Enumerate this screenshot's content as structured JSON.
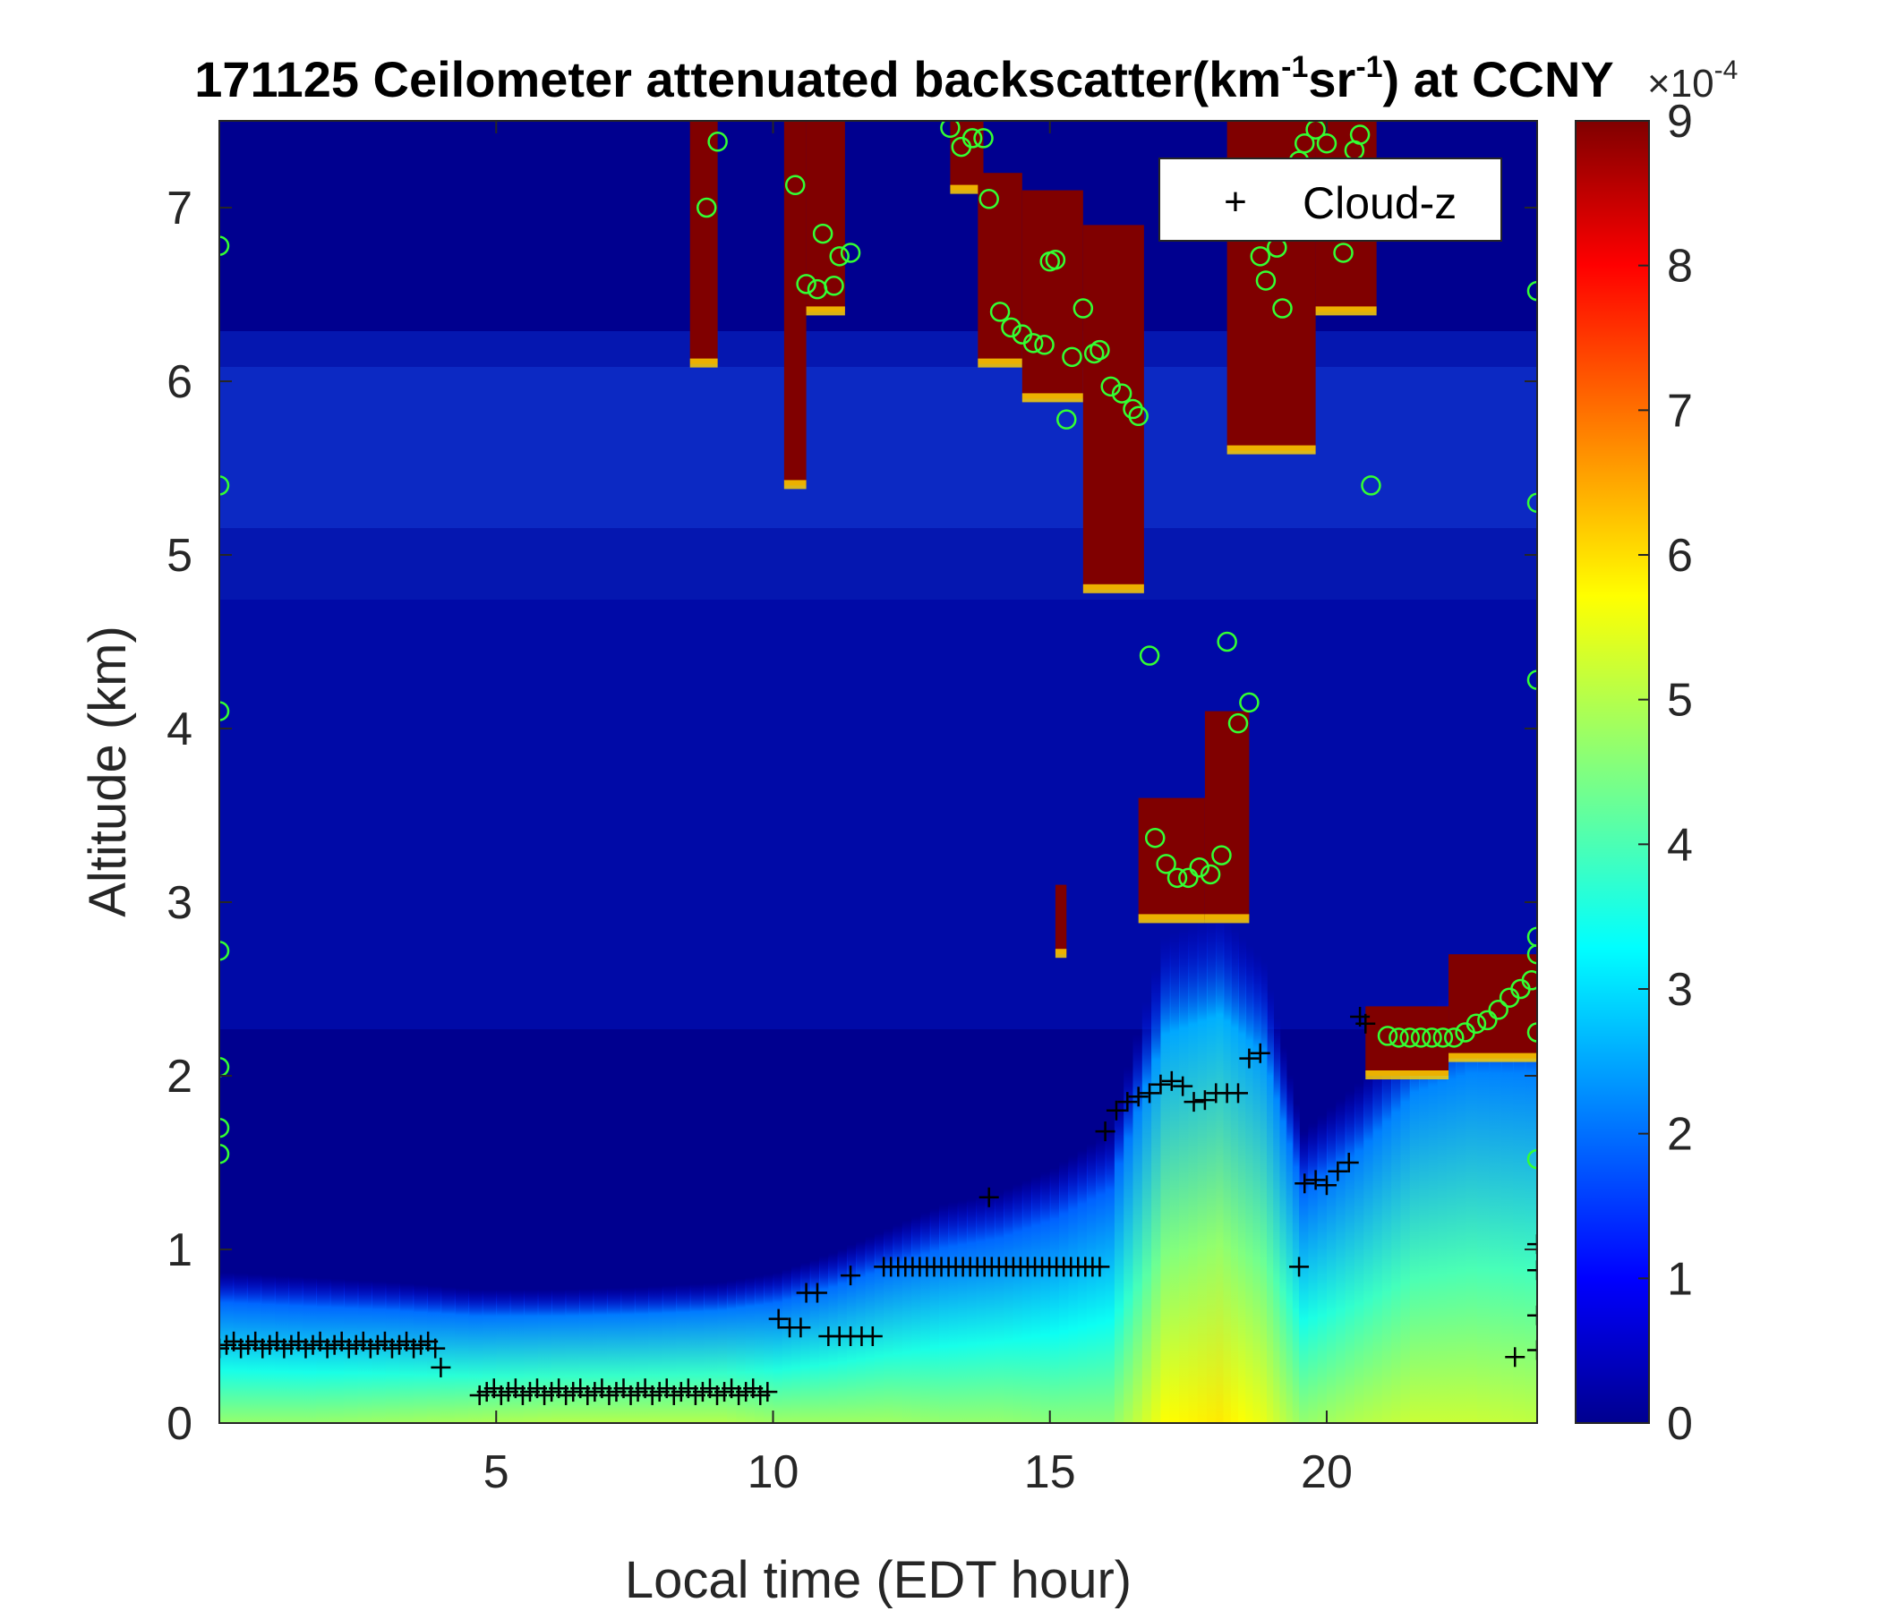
{
  "chart_data": {
    "type": "heatmap",
    "title": {
      "prefix": "171125 Ceilometer attenuated backscatter(km",
      "sup1": "-1",
      "mid": "sr",
      "sup2": "-1",
      "suffix": ") at CCNY"
    },
    "xlabel": "Local time (EDT hour)",
    "ylabel": "Altitude (km)",
    "xlim": [
      0,
      23.8
    ],
    "ylim": [
      0,
      7.5
    ],
    "x_ticks": [
      5,
      10,
      15,
      20
    ],
    "y_ticks": [
      0,
      1,
      2,
      3,
      4,
      5,
      6,
      7
    ],
    "colorbar": {
      "range": [
        0,
        9
      ],
      "ticks": [
        0,
        1,
        2,
        3,
        4,
        5,
        6,
        7,
        8,
        9
      ],
      "multiplier_base": "×10",
      "multiplier_exp": "-4",
      "colormap": "jet"
    },
    "legend": {
      "position": "top-right",
      "marker": "+",
      "label": "Cloud-z"
    },
    "colors": {
      "background_low": "#00008f",
      "saturated": "#800000",
      "circle_marker": "#33ff33",
      "plus_marker": "#000000"
    },
    "surface_layer": [
      [
        0,
        0.62,
        3.5
      ],
      [
        1.5,
        0.6,
        3.5
      ],
      [
        3,
        0.58,
        3.6
      ],
      [
        4.5,
        0.55,
        3.7
      ],
      [
        6,
        0.55,
        3.8
      ],
      [
        7.5,
        0.56,
        3.8
      ],
      [
        9,
        0.58,
        3.8
      ],
      [
        10,
        0.62,
        3.6
      ],
      [
        11,
        0.7,
        3.6
      ],
      [
        12,
        0.8,
        3.6
      ],
      [
        13,
        0.9,
        3.5
      ],
      [
        14,
        0.95,
        3.5
      ],
      [
        15,
        1.05,
        3.4
      ],
      [
        16,
        1.2,
        3.4
      ],
      [
        17,
        2.0,
        4.5
      ],
      [
        18,
        2.1,
        4.7
      ],
      [
        18.8,
        1.9,
        4.3
      ],
      [
        19.5,
        1.2,
        3.5
      ],
      [
        20.5,
        1.4,
        3.8
      ],
      [
        21.5,
        1.7,
        4.0
      ],
      [
        22.5,
        1.8,
        4.0
      ],
      [
        23.8,
        1.8,
        3.9
      ]
    ],
    "cloud_blocks": [
      [
        8.5,
        9.0,
        6.1,
        7.5
      ],
      [
        10.2,
        10.6,
        5.4,
        7.5
      ],
      [
        10.6,
        11.3,
        6.4,
        7.5
      ],
      [
        13.2,
        13.8,
        7.1,
        7.5
      ],
      [
        13.7,
        14.5,
        6.1,
        7.2
      ],
      [
        14.5,
        15.6,
        5.9,
        7.1
      ],
      [
        15.6,
        16.7,
        4.8,
        6.9
      ],
      [
        16.6,
        17.8,
        2.9,
        3.6
      ],
      [
        17.8,
        18.6,
        2.9,
        4.1
      ],
      [
        18.2,
        19.8,
        5.6,
        7.5
      ],
      [
        19.8,
        20.9,
        6.4,
        7.5
      ],
      [
        20.7,
        22.2,
        2.0,
        2.4
      ],
      [
        22.2,
        23.8,
        2.1,
        2.7
      ],
      [
        15.1,
        15.3,
        2.7,
        3.1
      ]
    ],
    "cloud_base_circles": [
      [
        0,
        6.78
      ],
      [
        0,
        5.4
      ],
      [
        0,
        4.1
      ],
      [
        0,
        2.72
      ],
      [
        0,
        2.05
      ],
      [
        0,
        1.7
      ],
      [
        0,
        1.55
      ],
      [
        8.8,
        7.0
      ],
      [
        9.0,
        7.38
      ],
      [
        10.4,
        7.13
      ],
      [
        10.6,
        6.56
      ],
      [
        10.8,
        6.53
      ],
      [
        10.9,
        6.85
      ],
      [
        11.1,
        6.55
      ],
      [
        11.2,
        6.72
      ],
      [
        11.4,
        6.74
      ],
      [
        13.2,
        7.46
      ],
      [
        13.4,
        7.35
      ],
      [
        13.6,
        7.4
      ],
      [
        13.8,
        7.4
      ],
      [
        13.9,
        7.05
      ],
      [
        14.1,
        6.4
      ],
      [
        14.3,
        6.31
      ],
      [
        14.5,
        6.27
      ],
      [
        14.7,
        6.22
      ],
      [
        14.9,
        6.21
      ],
      [
        15.0,
        6.69
      ],
      [
        15.1,
        6.7
      ],
      [
        15.3,
        5.78
      ],
      [
        15.4,
        6.14
      ],
      [
        15.6,
        6.42
      ],
      [
        15.8,
        6.16
      ],
      [
        15.9,
        6.18
      ],
      [
        16.1,
        5.97
      ],
      [
        16.3,
        5.93
      ],
      [
        16.5,
        5.84
      ],
      [
        16.6,
        5.8
      ],
      [
        16.8,
        4.42
      ],
      [
        16.9,
        3.37
      ],
      [
        17.1,
        3.22
      ],
      [
        17.3,
        3.14
      ],
      [
        17.5,
        3.14
      ],
      [
        17.7,
        3.2
      ],
      [
        17.9,
        3.16
      ],
      [
        18.1,
        3.27
      ],
      [
        18.2,
        4.5
      ],
      [
        18.4,
        4.03
      ],
      [
        18.6,
        4.15
      ],
      [
        18.8,
        6.72
      ],
      [
        18.9,
        6.58
      ],
      [
        19.1,
        6.77
      ],
      [
        19.2,
        6.42
      ],
      [
        19.5,
        7.27
      ],
      [
        19.6,
        7.37
      ],
      [
        19.8,
        7.45
      ],
      [
        20.0,
        7.37
      ],
      [
        20.3,
        6.74
      ],
      [
        20.5,
        7.33
      ],
      [
        20.6,
        7.42
      ],
      [
        20.8,
        5.4
      ],
      [
        21.1,
        2.23
      ],
      [
        21.3,
        2.22
      ],
      [
        21.5,
        2.22
      ],
      [
        21.7,
        2.22
      ],
      [
        21.9,
        2.22
      ],
      [
        22.1,
        2.22
      ],
      [
        22.3,
        2.22
      ],
      [
        22.5,
        2.25
      ],
      [
        22.7,
        2.3
      ],
      [
        22.9,
        2.32
      ],
      [
        23.1,
        2.38
      ],
      [
        23.3,
        2.45
      ],
      [
        23.5,
        2.5
      ],
      [
        23.7,
        2.55
      ],
      [
        23.8,
        2.7
      ],
      [
        23.8,
        2.8
      ],
      [
        23.8,
        2.25
      ],
      [
        23.8,
        1.52
      ],
      [
        23.8,
        4.28
      ],
      [
        23.8,
        5.3
      ],
      [
        23.8,
        6.52
      ]
    ],
    "cloud_z_plus": {
      "runs": [
        [
          0,
          4,
          0.45,
          0.02
        ],
        [
          4.7,
          10.0,
          0.18,
          0.02
        ],
        [
          12.0,
          16.0,
          0.9,
          0.0
        ]
      ],
      "points": [
        [
          4.0,
          0.32
        ],
        [
          10.1,
          0.6
        ],
        [
          10.3,
          0.55
        ],
        [
          10.5,
          0.55
        ],
        [
          10.6,
          0.75
        ],
        [
          10.8,
          0.75
        ],
        [
          11.0,
          0.5
        ],
        [
          11.2,
          0.5
        ],
        [
          11.4,
          0.5
        ],
        [
          11.6,
          0.5
        ],
        [
          11.8,
          0.5
        ],
        [
          11.4,
          0.85
        ],
        [
          13.9,
          1.3
        ],
        [
          16.0,
          1.68
        ],
        [
          16.2,
          1.8
        ],
        [
          16.4,
          1.85
        ],
        [
          16.6,
          1.88
        ],
        [
          16.8,
          1.9
        ],
        [
          17.0,
          1.95
        ],
        [
          17.2,
          1.97
        ],
        [
          17.4,
          1.94
        ],
        [
          17.6,
          1.85
        ],
        [
          17.8,
          1.86
        ],
        [
          18.0,
          1.9
        ],
        [
          18.2,
          1.9
        ],
        [
          18.4,
          1.9
        ],
        [
          18.6,
          2.1
        ],
        [
          18.8,
          2.13
        ],
        [
          19.5,
          0.9
        ],
        [
          19.6,
          1.38
        ],
        [
          19.8,
          1.4
        ],
        [
          20.0,
          1.37
        ],
        [
          20.2,
          1.45
        ],
        [
          20.4,
          1.5
        ],
        [
          20.6,
          2.34
        ],
        [
          20.7,
          2.3
        ],
        [
          23.4,
          0.38
        ],
        [
          23.8,
          0.42
        ],
        [
          23.8,
          0.62
        ],
        [
          23.8,
          0.88
        ],
        [
          23.8,
          1.03
        ]
      ]
    }
  }
}
